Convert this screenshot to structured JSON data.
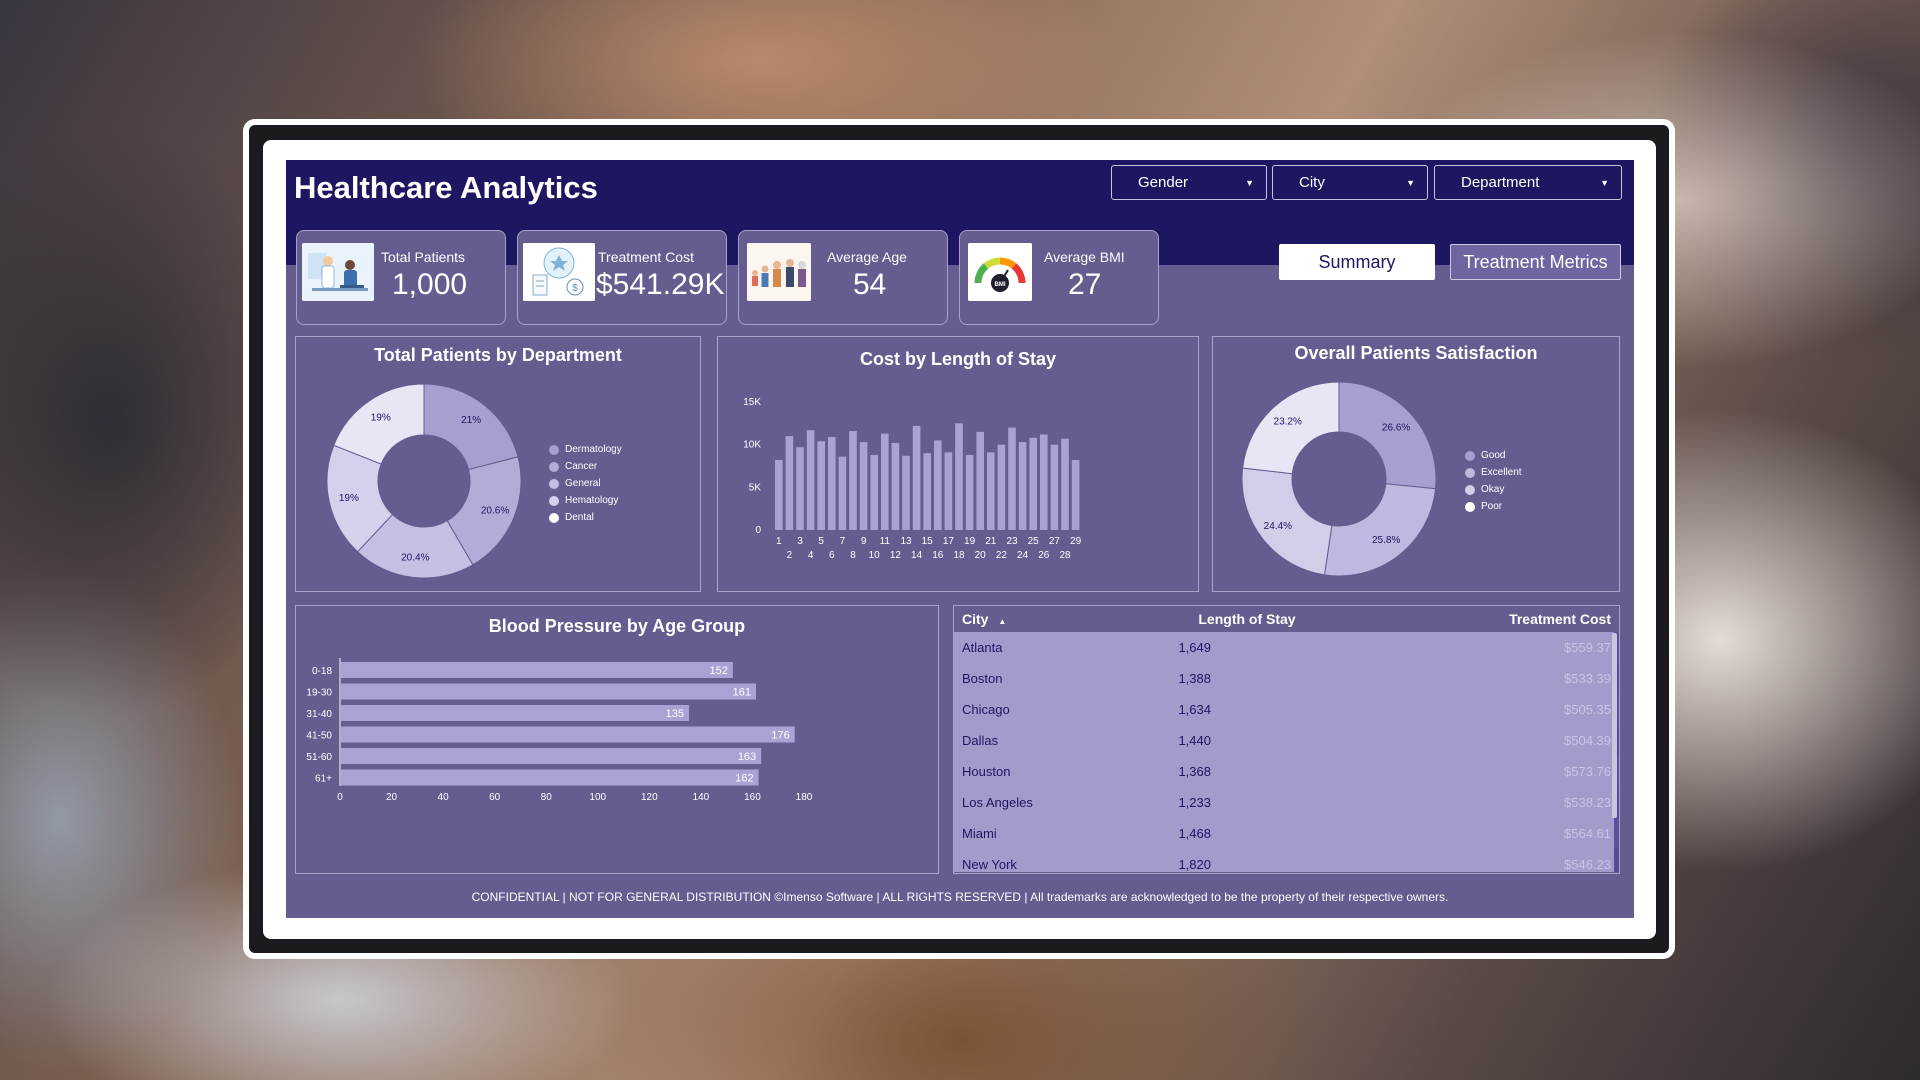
{
  "title": "Healthcare Analytics",
  "slicers": [
    {
      "label": "Gender"
    },
    {
      "label": "City"
    },
    {
      "label": "Department"
    }
  ],
  "kpis": {
    "patients": {
      "label": "Total Patients",
      "value": "1,000"
    },
    "cost": {
      "label": "Treatment Cost",
      "value": "$541.29K"
    },
    "age": {
      "label": "Average Age",
      "value": "54"
    },
    "bmi": {
      "label": "Average BMI",
      "value": "27",
      "icon_text": "BMI"
    }
  },
  "tabs": {
    "summary": "Summary",
    "treatment": "Treatment Metrics"
  },
  "colors": {
    "header": "#1d1660",
    "panel": "#655c8f",
    "bar": "#aaa2d4",
    "tableCityCol": "#a49bcc",
    "tableRowA": "#5c4e9b",
    "tableRowB": "#574a96"
  },
  "chart_data": [
    {
      "type": "pie",
      "title": "Total Patients by Department",
      "labels": [
        "Dermatology",
        "Cancer",
        "General",
        "Hematology",
        "Dental"
      ],
      "values": [
        21,
        20.6,
        20.4,
        19,
        19
      ],
      "value_labels": [
        "21%",
        "20.6%",
        "20.4%",
        "19%",
        "19%"
      ],
      "colors": [
        "#a79fd0",
        "#b3acd8",
        "#c5bfe3",
        "#d5d0ec",
        "#e8e6f5"
      ],
      "donut": true,
      "legend": "right"
    },
    {
      "type": "bar",
      "title": "Cost by Length of Stay",
      "categories": [
        1,
        2,
        3,
        4,
        5,
        6,
        7,
        8,
        9,
        10,
        11,
        12,
        13,
        14,
        15,
        16,
        17,
        18,
        19,
        20,
        21,
        22,
        23,
        24,
        25,
        26,
        27,
        28,
        29
      ],
      "values": [
        8200,
        11000,
        9700,
        11700,
        10400,
        10900,
        8600,
        11600,
        10300,
        8800,
        11300,
        10200,
        8700,
        12200,
        9000,
        10500,
        9100,
        12500,
        8800,
        11500,
        9100,
        10000,
        12000,
        10300,
        10800,
        11200,
        10000,
        10700,
        8200
      ],
      "ylim": [
        0,
        15000
      ],
      "yticks": [
        "0",
        "5K",
        "10K",
        "15K"
      ],
      "xticks_top": [
        "1",
        "3",
        "5",
        "7",
        "9",
        "11",
        "13",
        "15",
        "17",
        "19",
        "21",
        "23",
        "25",
        "27",
        "29"
      ],
      "xticks_bottom": [
        "2",
        "4",
        "6",
        "8",
        "10",
        "12",
        "14",
        "16",
        "18",
        "20",
        "22",
        "24",
        "26",
        "28"
      ]
    },
    {
      "type": "pie",
      "title": "Overall Patients Satisfaction",
      "labels": [
        "Good",
        "Excellent",
        "Okay",
        "Poor"
      ],
      "values": [
        26.6,
        25.8,
        24.4,
        23.2
      ],
      "value_labels": [
        "26.6%",
        "25.8%",
        "24.4%",
        "23.2%"
      ],
      "colors": [
        "#a79fd0",
        "#bfb8e0",
        "#d3cdea",
        "#e8e6f5"
      ],
      "donut": true,
      "legend": "right"
    },
    {
      "type": "bar",
      "orientation": "horizontal",
      "title": "Blood Pressure by Age Group",
      "categories": [
        "0-18",
        "19-30",
        "31-40",
        "41-50",
        "51-60",
        "61+"
      ],
      "values": [
        152,
        161,
        135,
        176,
        163,
        162
      ],
      "xlim": [
        0,
        180
      ],
      "xticks": [
        "0",
        "20",
        "40",
        "60",
        "80",
        "100",
        "120",
        "140",
        "160",
        "180"
      ]
    }
  ],
  "table": {
    "headers": {
      "city": "City",
      "stay": "Length of Stay",
      "cost": "Treatment Cost"
    },
    "sort_glyph": "▲",
    "rows": [
      {
        "city": "Atlanta",
        "stay": "1,649",
        "cost": "$559.37"
      },
      {
        "city": "Boston",
        "stay": "1,388",
        "cost": "$533.39"
      },
      {
        "city": "Chicago",
        "stay": "1,634",
        "cost": "$505.35"
      },
      {
        "city": "Dallas",
        "stay": "1,440",
        "cost": "$504.39"
      },
      {
        "city": "Houston",
        "stay": "1,368",
        "cost": "$573.76"
      },
      {
        "city": "Los Angeles",
        "stay": "1,233",
        "cost": "$538.23"
      },
      {
        "city": "Miami",
        "stay": "1,468",
        "cost": "$564.61"
      },
      {
        "city": "New York",
        "stay": "1,820",
        "cost": "$546.23"
      }
    ]
  },
  "footer": "CONFIDENTIAL | NOT FOR GENERAL DISTRIBUTION ©Imenso Software | ALL RIGHTS RESERVED | All trademarks are acknowledged to be the property of their respective owners."
}
